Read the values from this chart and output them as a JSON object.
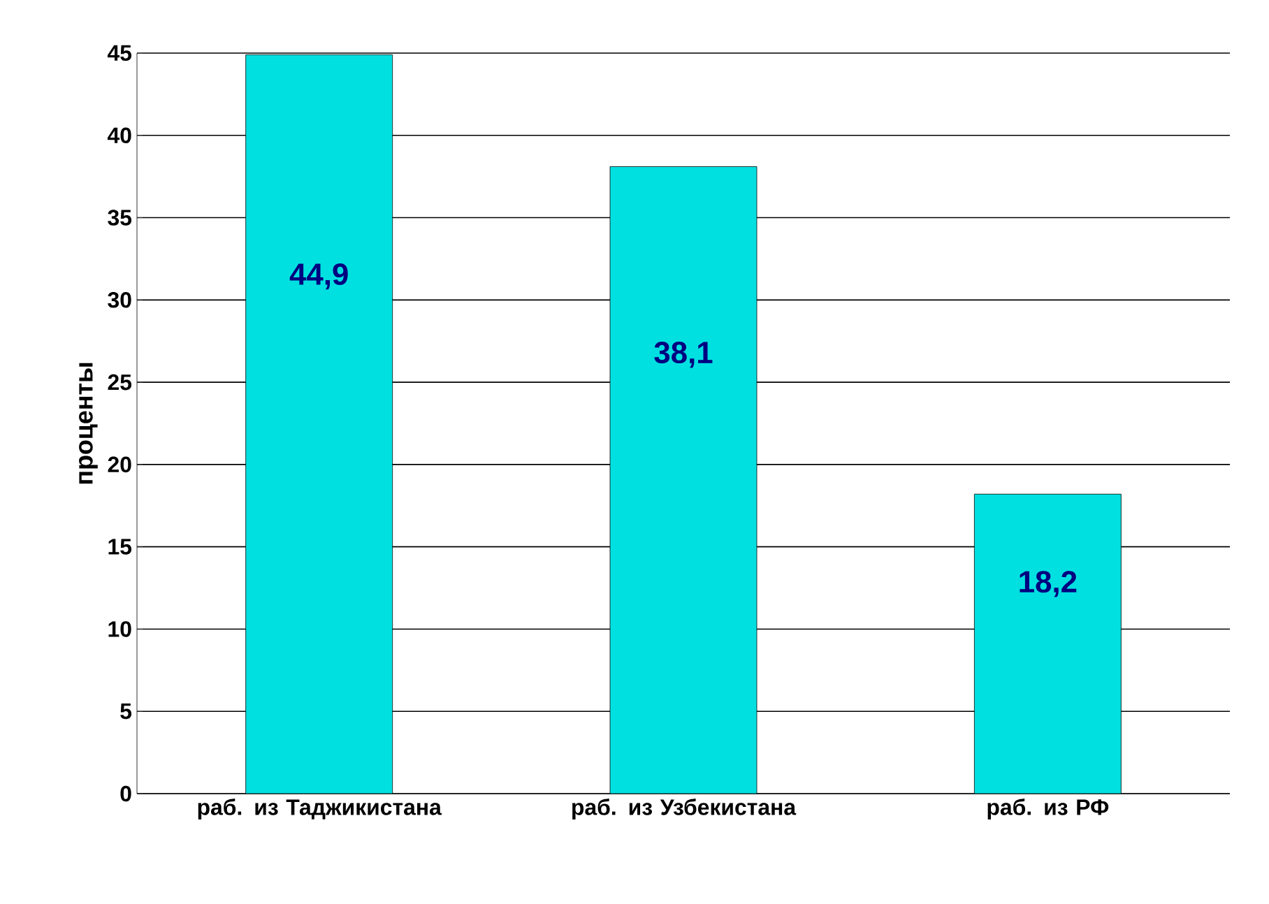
{
  "chart_data": {
    "type": "bar",
    "ylabel": "проценты",
    "categories": [
      "раб. из Таджикистана",
      "раб. из Узбекистана",
      "раб. из РФ"
    ],
    "values": [
      44.9,
      38.1,
      18.2
    ],
    "value_labels": [
      "44,9",
      "38,1",
      "18,2"
    ],
    "color": "#00e0e0",
    "ylim": [
      0,
      45
    ],
    "yticks": [
      0,
      5,
      10,
      15,
      20,
      25,
      30,
      35,
      40,
      45
    ],
    "grid": "y"
  }
}
